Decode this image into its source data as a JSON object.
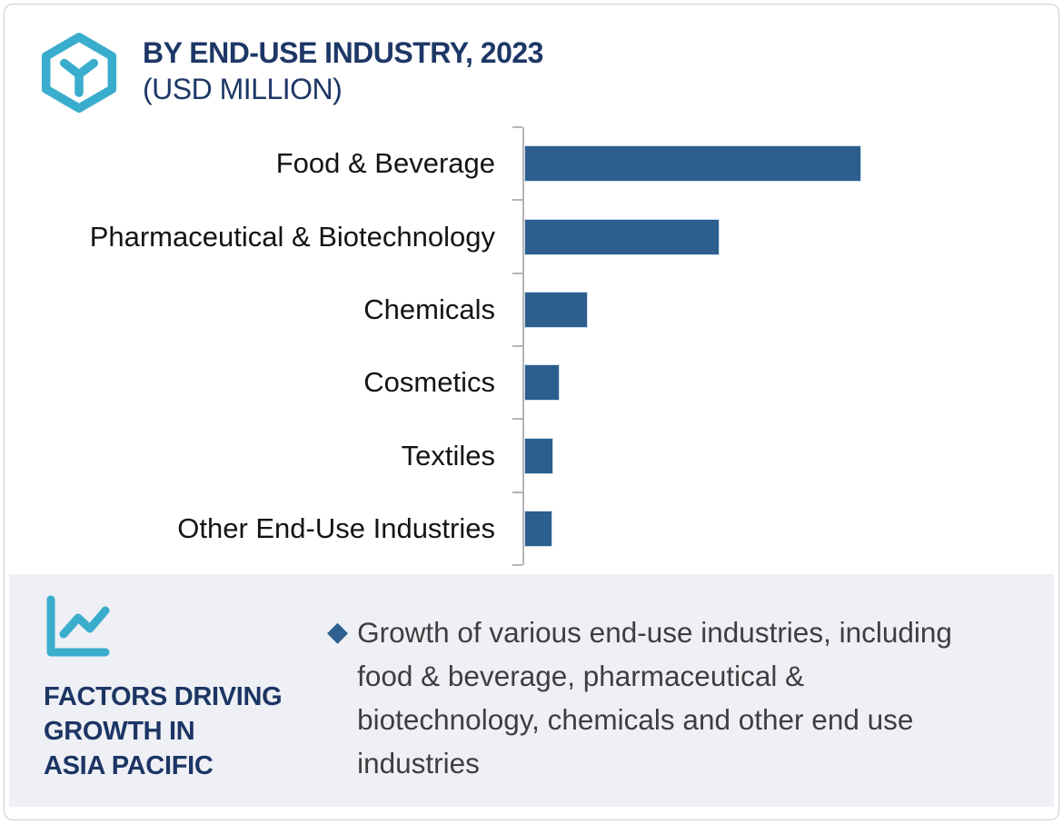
{
  "header": {
    "title": "BY END-USE INDUSTRY, 2023",
    "subtitle": "(USD MILLION)",
    "logo_icon": "hexagon-y-icon"
  },
  "chart_data": {
    "type": "bar",
    "orientation": "horizontal",
    "title": "BY END-USE INDUSTRY, 2023 (USD MILLION)",
    "categories": [
      "Food & Beverage",
      "Pharmaceutical & Biotechnology",
      "Chemicals",
      "Cosmetics",
      "Textiles",
      "Other End-Use Industries"
    ],
    "values": [
      100,
      58,
      19,
      10.5,
      8.6,
      8.4
    ],
    "values_note": "no numeric value axis shown; values estimated as percent of longest bar",
    "unit": "USD Million",
    "grid": false,
    "legend": false,
    "value_axis_labels_visible": false,
    "bar_color": "#2d5f8e",
    "axis_color": "#b5b5b5"
  },
  "footer": {
    "icon": "line-chart-icon",
    "heading_lines": [
      "FACTORS DRIVING",
      "GROWTH IN",
      "ASIA PACIFIC"
    ],
    "bullet": {
      "marker": "◆",
      "marker_icon": "diamond-icon",
      "text": "Growth of various end-use industries, including food & beverage, pharmaceutical & biotechnology, chemicals and other end use industries"
    }
  },
  "colors": {
    "accent_blue": "#3aadcd",
    "bar_blue": "#2d5f8e",
    "navy_text": "#1d3766",
    "body_text": "#3e3e3e",
    "panel_bg": "#eef0f5",
    "frame_border": "#cdcdcd"
  }
}
